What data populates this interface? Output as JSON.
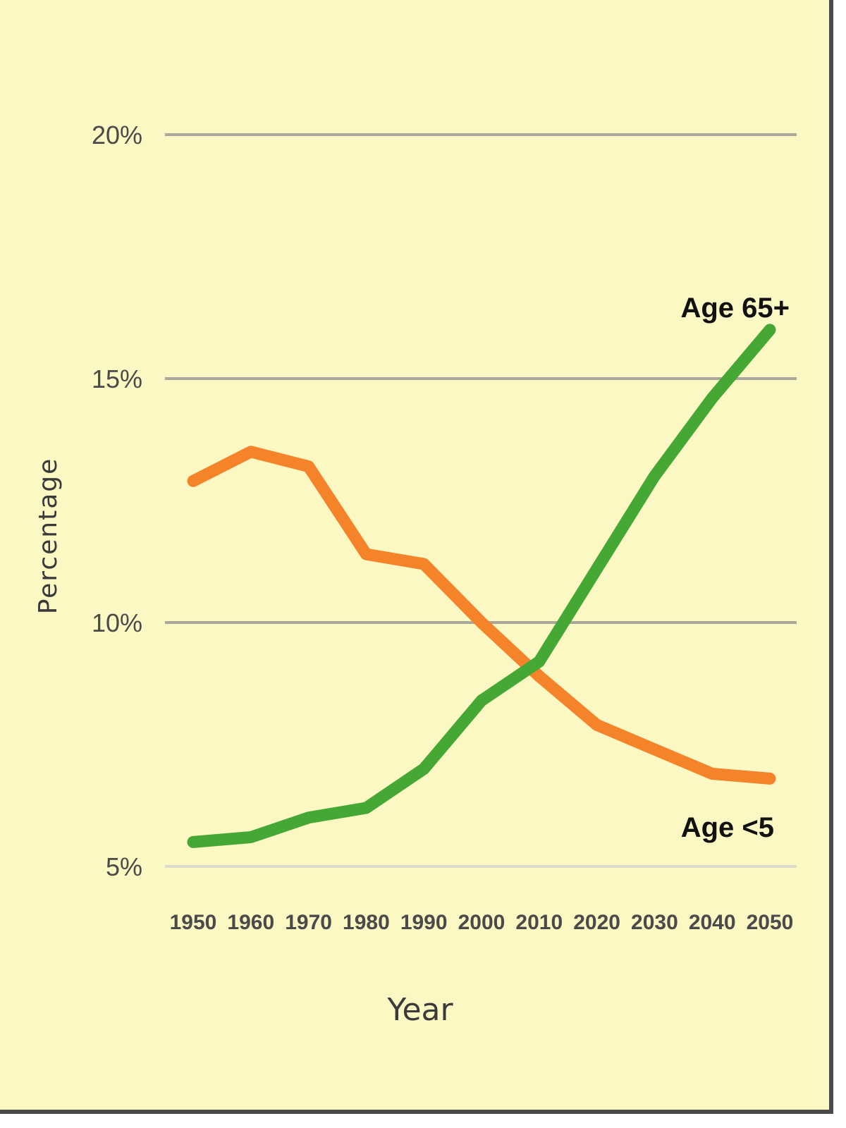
{
  "chart_data": {
    "type": "line",
    "title": "",
    "xlabel": "Year",
    "ylabel": "Percentage",
    "x": [
      1950,
      1960,
      1970,
      1980,
      1990,
      2000,
      2010,
      2020,
      2030,
      2040,
      2050
    ],
    "x_tick_labels": [
      "1950",
      "1960",
      "1970",
      "1980",
      "1990",
      "2000",
      "2010",
      "2020",
      "2030",
      "2040",
      "2050"
    ],
    "ylim": [
      5,
      20
    ],
    "y_ticks": [
      5,
      10,
      15,
      20
    ],
    "y_tick_labels": [
      "5%",
      "10%",
      "15%",
      "20%"
    ],
    "grid": true,
    "legend": "none",
    "series": [
      {
        "name": "Age <5",
        "color": "#f5832a",
        "values": [
          12.9,
          13.5,
          13.2,
          11.4,
          11.2,
          10.0,
          8.9,
          7.9,
          7.4,
          6.9,
          6.8
        ]
      },
      {
        "name": "Age 65+",
        "color": "#45a835",
        "values": [
          5.5,
          5.6,
          6.0,
          6.2,
          7.0,
          8.4,
          9.2,
          11.1,
          13.0,
          14.6,
          16.0
        ]
      }
    ]
  }
}
